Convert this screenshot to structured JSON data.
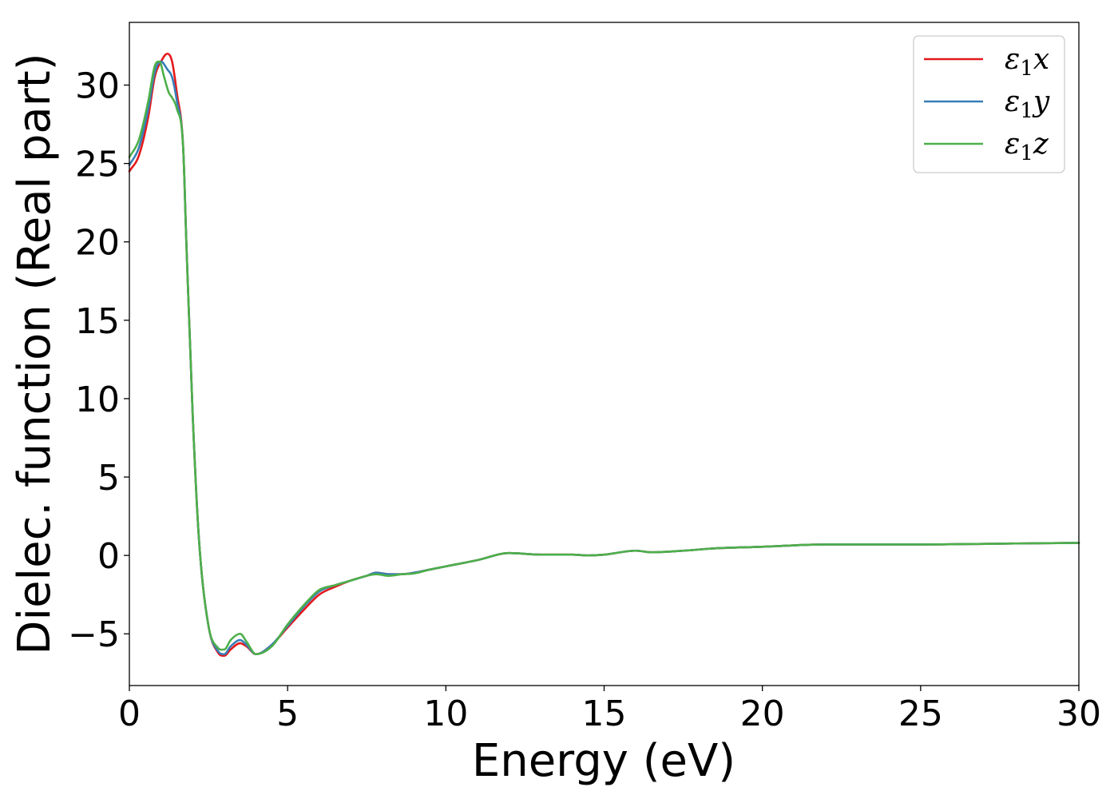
{
  "chart_data": {
    "type": "line",
    "title": "",
    "xlabel": "Energy (eV)",
    "ylabel": "Dielec. function (Real part)",
    "xlim": [
      0,
      30
    ],
    "ylim": [
      -8.3,
      34
    ],
    "xticks": [
      0,
      5,
      10,
      15,
      20,
      25,
      30
    ],
    "yticks": [
      -5,
      0,
      5,
      10,
      15,
      20,
      25,
      30
    ],
    "xtick_labels": [
      "0",
      "5",
      "10",
      "15",
      "20",
      "25",
      "30"
    ],
    "ytick_labels": [
      "−5",
      "0",
      "5",
      "10",
      "15",
      "20",
      "25",
      "30"
    ],
    "grid": false,
    "legend_position": "top-right",
    "series": [
      {
        "name": "ε1x",
        "legend": {
          "symbol": "ε",
          "sub": "1",
          "var": "x"
        },
        "color": "#e41a1c",
        "x": [
          0,
          0.3,
          0.6,
          0.8,
          1.0,
          1.2,
          1.35,
          1.5,
          1.7,
          1.8,
          2.0,
          2.2,
          2.5,
          2.8,
          3.0,
          3.2,
          3.5,
          3.7,
          4.0,
          4.5,
          5.0,
          5.5,
          6.0,
          6.5,
          7.0,
          7.5,
          7.8,
          8.2,
          8.6,
          9.0,
          9.5,
          10.0,
          11.0,
          12.0,
          13.0,
          14.0,
          14.5,
          15.0,
          16.0,
          16.5,
          17.5,
          18.5,
          20.0,
          22.0,
          25.0,
          27.5,
          30.0
        ],
        "y": [
          24.5,
          25.5,
          28.0,
          30.5,
          31.5,
          32.0,
          31.5,
          29.5,
          26.0,
          20.0,
          9.0,
          1.0,
          -4.5,
          -6.2,
          -6.4,
          -6.0,
          -5.6,
          -5.8,
          -6.3,
          -5.7,
          -4.6,
          -3.5,
          -2.5,
          -2.0,
          -1.6,
          -1.3,
          -1.1,
          -1.2,
          -1.2,
          -1.1,
          -0.9,
          -0.7,
          -0.3,
          0.15,
          0.05,
          0.05,
          0.0,
          0.05,
          0.3,
          0.2,
          0.3,
          0.45,
          0.55,
          0.7,
          0.7,
          0.75,
          0.8
        ]
      },
      {
        "name": "ε1y",
        "legend": {
          "symbol": "ε",
          "sub": "1",
          "var": "y"
        },
        "color": "#377eb8",
        "x": [
          0,
          0.3,
          0.6,
          0.8,
          1.0,
          1.2,
          1.35,
          1.5,
          1.7,
          1.8,
          2.0,
          2.2,
          2.5,
          2.8,
          3.0,
          3.2,
          3.5,
          3.7,
          4.0,
          4.5,
          5.0,
          5.5,
          6.0,
          6.5,
          7.0,
          7.5,
          7.8,
          8.2,
          8.6,
          9.0,
          9.5,
          10.0,
          11.0,
          12.0,
          13.0,
          14.0,
          14.5,
          15.0,
          16.0,
          16.5,
          17.5,
          18.5,
          20.0,
          22.0,
          25.0,
          27.5,
          30.0
        ],
        "y": [
          24.9,
          26.0,
          28.5,
          30.8,
          31.5,
          31.0,
          30.5,
          29.0,
          26.0,
          20.0,
          9.0,
          1.0,
          -4.5,
          -6.1,
          -6.3,
          -5.8,
          -5.4,
          -5.7,
          -6.3,
          -5.7,
          -4.5,
          -3.3,
          -2.3,
          -1.9,
          -1.6,
          -1.3,
          -1.1,
          -1.2,
          -1.2,
          -1.1,
          -0.9,
          -0.7,
          -0.3,
          0.15,
          0.05,
          0.05,
          0.0,
          0.05,
          0.3,
          0.2,
          0.3,
          0.45,
          0.55,
          0.7,
          0.7,
          0.75,
          0.8
        ]
      },
      {
        "name": "ε1z",
        "legend": {
          "symbol": "ε",
          "sub": "1",
          "var": "z"
        },
        "color": "#4daf4a",
        "x": [
          0,
          0.3,
          0.6,
          0.8,
          0.95,
          1.1,
          1.25,
          1.35,
          1.5,
          1.7,
          1.8,
          2.0,
          2.2,
          2.5,
          2.8,
          3.0,
          3.2,
          3.5,
          3.7,
          4.0,
          4.5,
          5.0,
          5.5,
          6.0,
          6.5,
          7.0,
          7.5,
          7.8,
          8.2,
          8.6,
          9.0,
          9.5,
          10.0,
          11.0,
          12.0,
          13.0,
          14.0,
          14.5,
          15.0,
          16.0,
          16.5,
          17.5,
          18.5,
          20.0,
          22.0,
          25.0,
          27.5,
          30.0
        ],
        "y": [
          25.4,
          26.5,
          29.0,
          31.2,
          31.5,
          30.5,
          29.5,
          29.2,
          28.5,
          26.0,
          20.0,
          9.0,
          1.0,
          -4.5,
          -5.9,
          -6.0,
          -5.4,
          -5.0,
          -5.5,
          -6.3,
          -5.8,
          -4.4,
          -3.2,
          -2.2,
          -1.9,
          -1.6,
          -1.3,
          -1.2,
          -1.3,
          -1.2,
          -1.15,
          -0.9,
          -0.7,
          -0.3,
          0.15,
          0.05,
          0.05,
          0.0,
          0.05,
          0.3,
          0.2,
          0.3,
          0.45,
          0.55,
          0.7,
          0.7,
          0.75,
          0.8
        ]
      }
    ]
  }
}
